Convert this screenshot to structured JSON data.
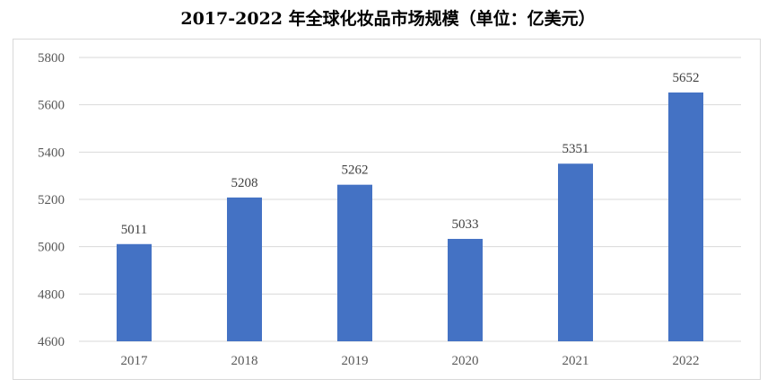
{
  "chart_data": {
    "type": "bar",
    "title": "2017-2022 年全球化妆品市场规模（单位：亿美元）",
    "categories": [
      "2017",
      "2018",
      "2019",
      "2020",
      "2021",
      "2022"
    ],
    "values": [
      5011,
      5208,
      5262,
      5033,
      5351,
      5652
    ],
    "xlabel": "",
    "ylabel": "",
    "ylim": [
      4600,
      5800
    ],
    "yticks": [
      4600,
      4800,
      5000,
      5200,
      5400,
      5600,
      5800
    ],
    "grid": true,
    "legend": "none",
    "bar_color": "#4472C4",
    "grid_color": "#d9d9d9"
  }
}
